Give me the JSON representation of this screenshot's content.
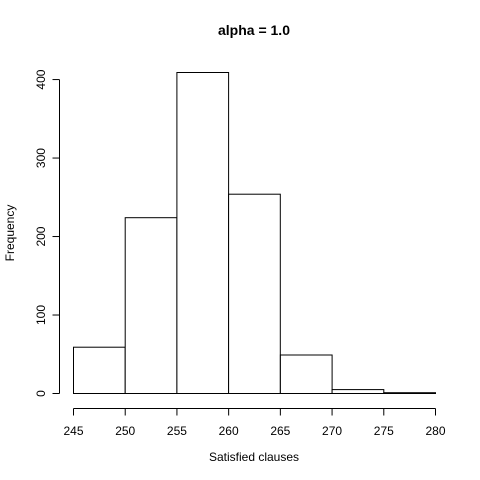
{
  "chart_data": {
    "type": "bar",
    "subtype": "histogram",
    "title": "alpha = 1.0",
    "xlabel": "Satisfied clauses",
    "ylabel": "Frequency",
    "bin_edges": [
      245,
      250,
      255,
      260,
      265,
      270,
      275,
      280
    ],
    "values": [
      59,
      224,
      409,
      254,
      49,
      5,
      1
    ],
    "xlim": [
      245,
      280
    ],
    "ylim": [
      0,
      409
    ],
    "x_ticks": [
      245,
      250,
      255,
      260,
      265,
      270,
      275,
      280
    ],
    "y_ticks": [
      0,
      100,
      200,
      300,
      400
    ],
    "grid": false,
    "legend": "none",
    "bar_fill": "#ffffff",
    "bar_stroke": "#000000"
  }
}
